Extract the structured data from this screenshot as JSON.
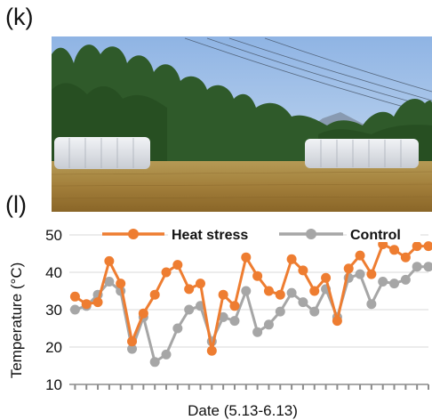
{
  "panels": {
    "top_label": "(k)",
    "bottom_label": "(l)"
  },
  "chart_data": {
    "type": "line",
    "xlabel": "Date (5.13-6.13)",
    "ylabel": "Temperature (°C)",
    "ylim": [
      10,
      50
    ],
    "yticks": [
      10,
      20,
      30,
      40,
      50
    ],
    "x": [
      1,
      2,
      3,
      4,
      5,
      6,
      7,
      8,
      9,
      10,
      11,
      12,
      13,
      14,
      15,
      16,
      17,
      18,
      19,
      20,
      21,
      22,
      23,
      24,
      25,
      26,
      27,
      28,
      29,
      30,
      31,
      32
    ],
    "grid": true,
    "legend_position": "top",
    "series": [
      {
        "name": "Heat stress",
        "color": "#ee7d31",
        "values": [
          33.5,
          31.5,
          32,
          43,
          37,
          21.5,
          29,
          34,
          40,
          42,
          35.5,
          37,
          19,
          34,
          31,
          44,
          39,
          35,
          34,
          43.5,
          40.5,
          35,
          38.5,
          27,
          41,
          44.5,
          39.5,
          47.5,
          46,
          44,
          47,
          47
        ]
      },
      {
        "name": "Control",
        "color": "#a6a6a6",
        "values": [
          30,
          31,
          34,
          37.5,
          35,
          19.5,
          28,
          16,
          18,
          25,
          30,
          31,
          21.5,
          28,
          27,
          35,
          24,
          26,
          29.5,
          34.5,
          32,
          29.5,
          35.5,
          28,
          38.5,
          39.5,
          31.5,
          37.5,
          37,
          38,
          41.5,
          41.5
        ]
      }
    ]
  }
}
